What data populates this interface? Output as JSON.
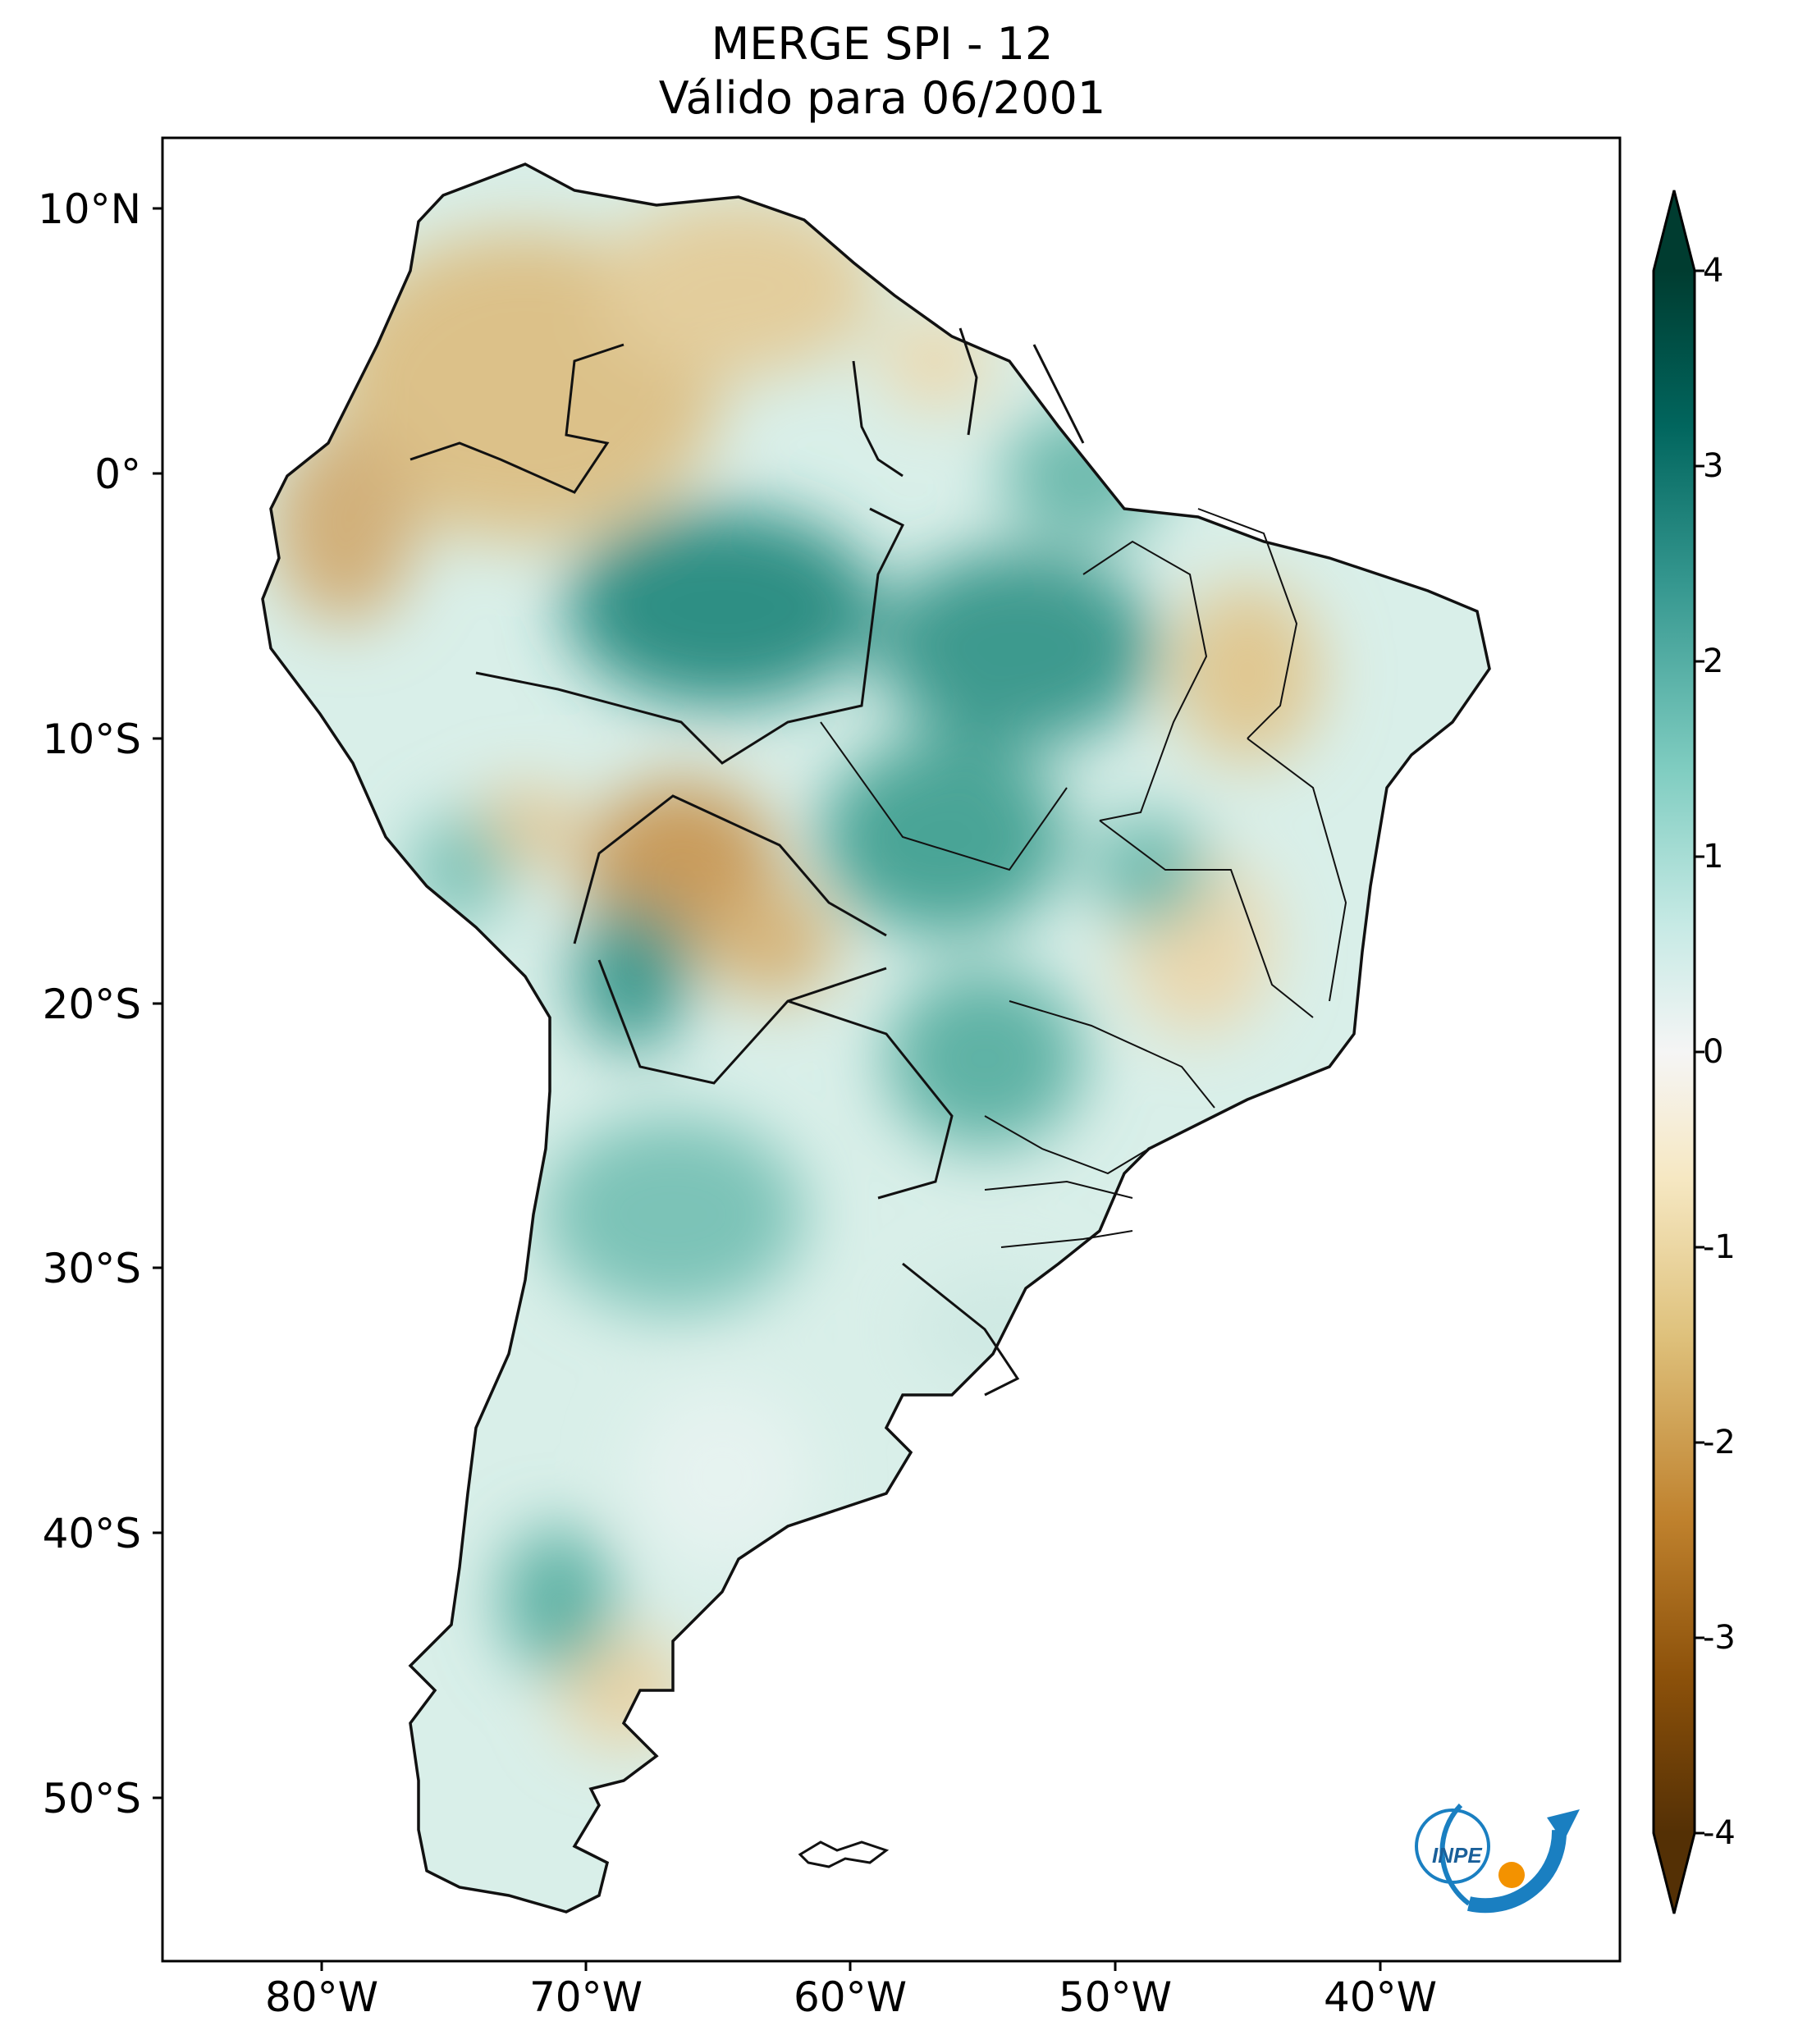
{
  "title": {
    "line1": "MERGE   SPI - 12",
    "line2": "Válido para 06/2001"
  },
  "axes": {
    "lat_labels": [
      "10°N",
      "0°",
      "10°S",
      "20°S",
      "30°S",
      "40°S",
      "50°S"
    ],
    "lon_labels": [
      "80°W",
      "70°W",
      "60°W",
      "50°W",
      "40°W"
    ],
    "lon_range": [
      -85,
      -30
    ],
    "lat_range": [
      -56,
      13
    ]
  },
  "colorbar": {
    "ticks": [
      "4",
      "3",
      "2",
      "1",
      "0",
      "-1",
      "-2",
      "-3",
      "-4"
    ],
    "range": [
      -4,
      4
    ],
    "extend": "both",
    "colormap": "BrBG",
    "colors": [
      "#003c30",
      "#01665e",
      "#35978f",
      "#80cdc1",
      "#c7eae5",
      "#f5f5f5",
      "#f6e8c3",
      "#dfc27d",
      "#bf812d",
      "#8c510a",
      "#543005"
    ]
  },
  "logo": {
    "text": "INPE",
    "colors": {
      "arc": "#1a7fc1",
      "dot": "#f39200"
    }
  },
  "map": {
    "region": "South America",
    "variable": "SPI-12"
  }
}
